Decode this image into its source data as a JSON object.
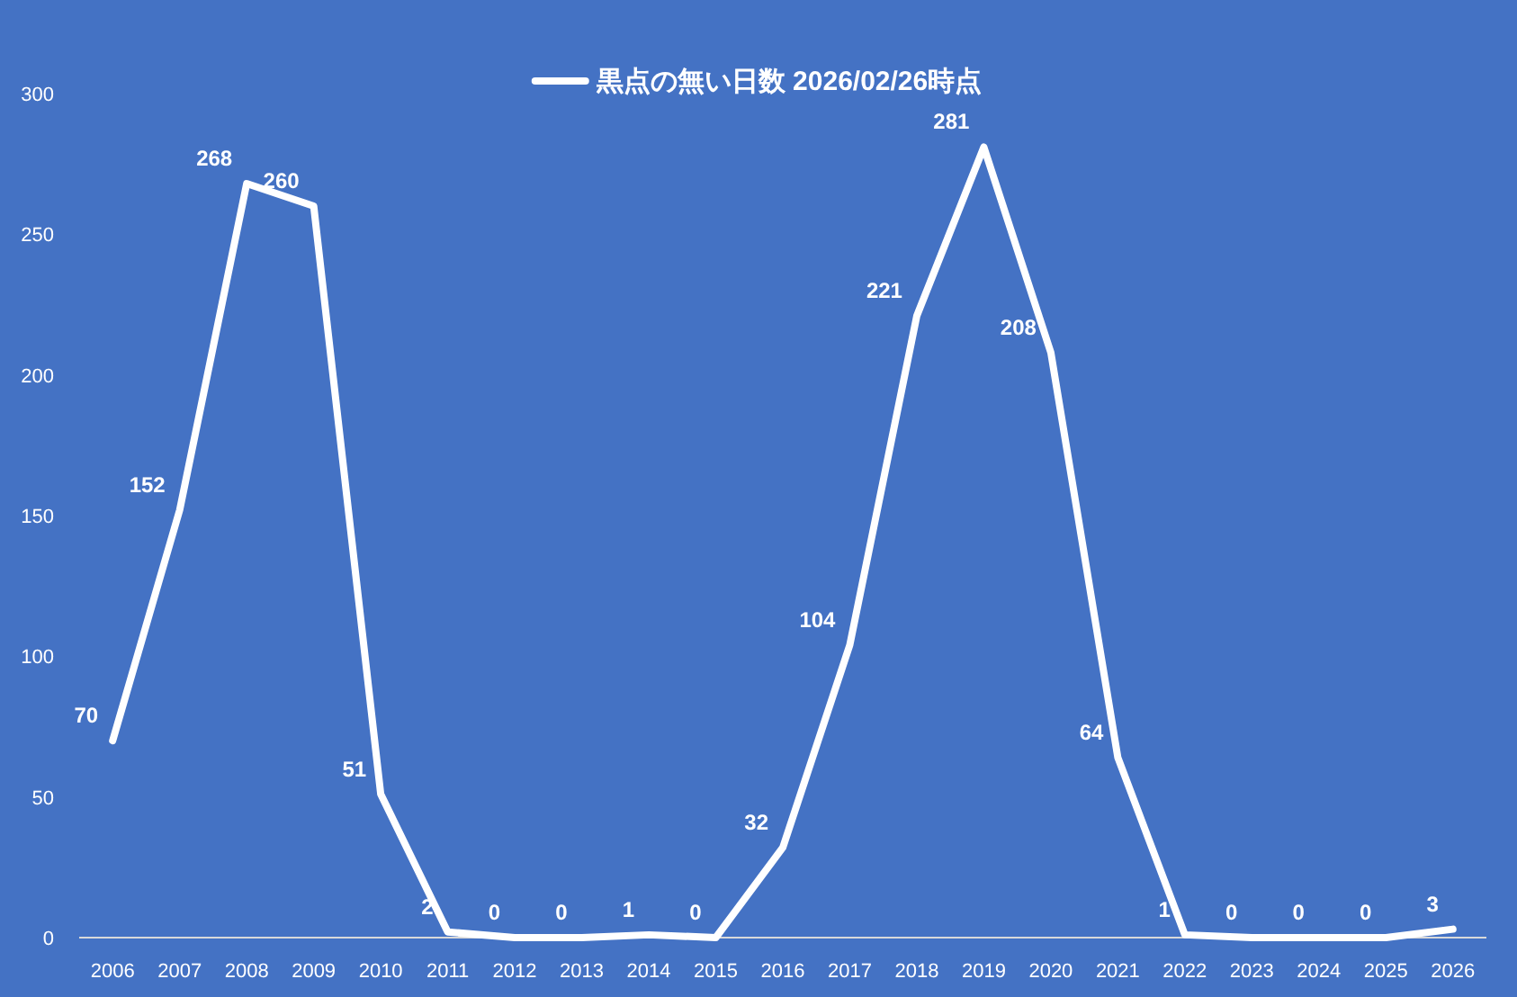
{
  "chart_data": {
    "type": "line",
    "categories": [
      "2006",
      "2007",
      "2008",
      "2009",
      "2010",
      "2011",
      "2012",
      "2013",
      "2014",
      "2015",
      "2016",
      "2017",
      "2018",
      "2019",
      "2020",
      "2021",
      "2022",
      "2023",
      "2024",
      "2025",
      "2026"
    ],
    "series": [
      {
        "name": "黒点の無い日数 2026/02/26時点",
        "color": "#ffffff",
        "values": [
          70,
          152,
          268,
          260,
          51,
          2,
          0,
          0,
          1,
          0,
          32,
          104,
          221,
          281,
          208,
          64,
          1,
          0,
          0,
          0,
          3
        ]
      }
    ],
    "ylim": [
      0,
      300
    ],
    "yticks": [
      0,
      50,
      100,
      150,
      200,
      250,
      300
    ],
    "data_labels": true,
    "legend": "top",
    "grid": false,
    "marker": "none",
    "line_style": "solid"
  }
}
